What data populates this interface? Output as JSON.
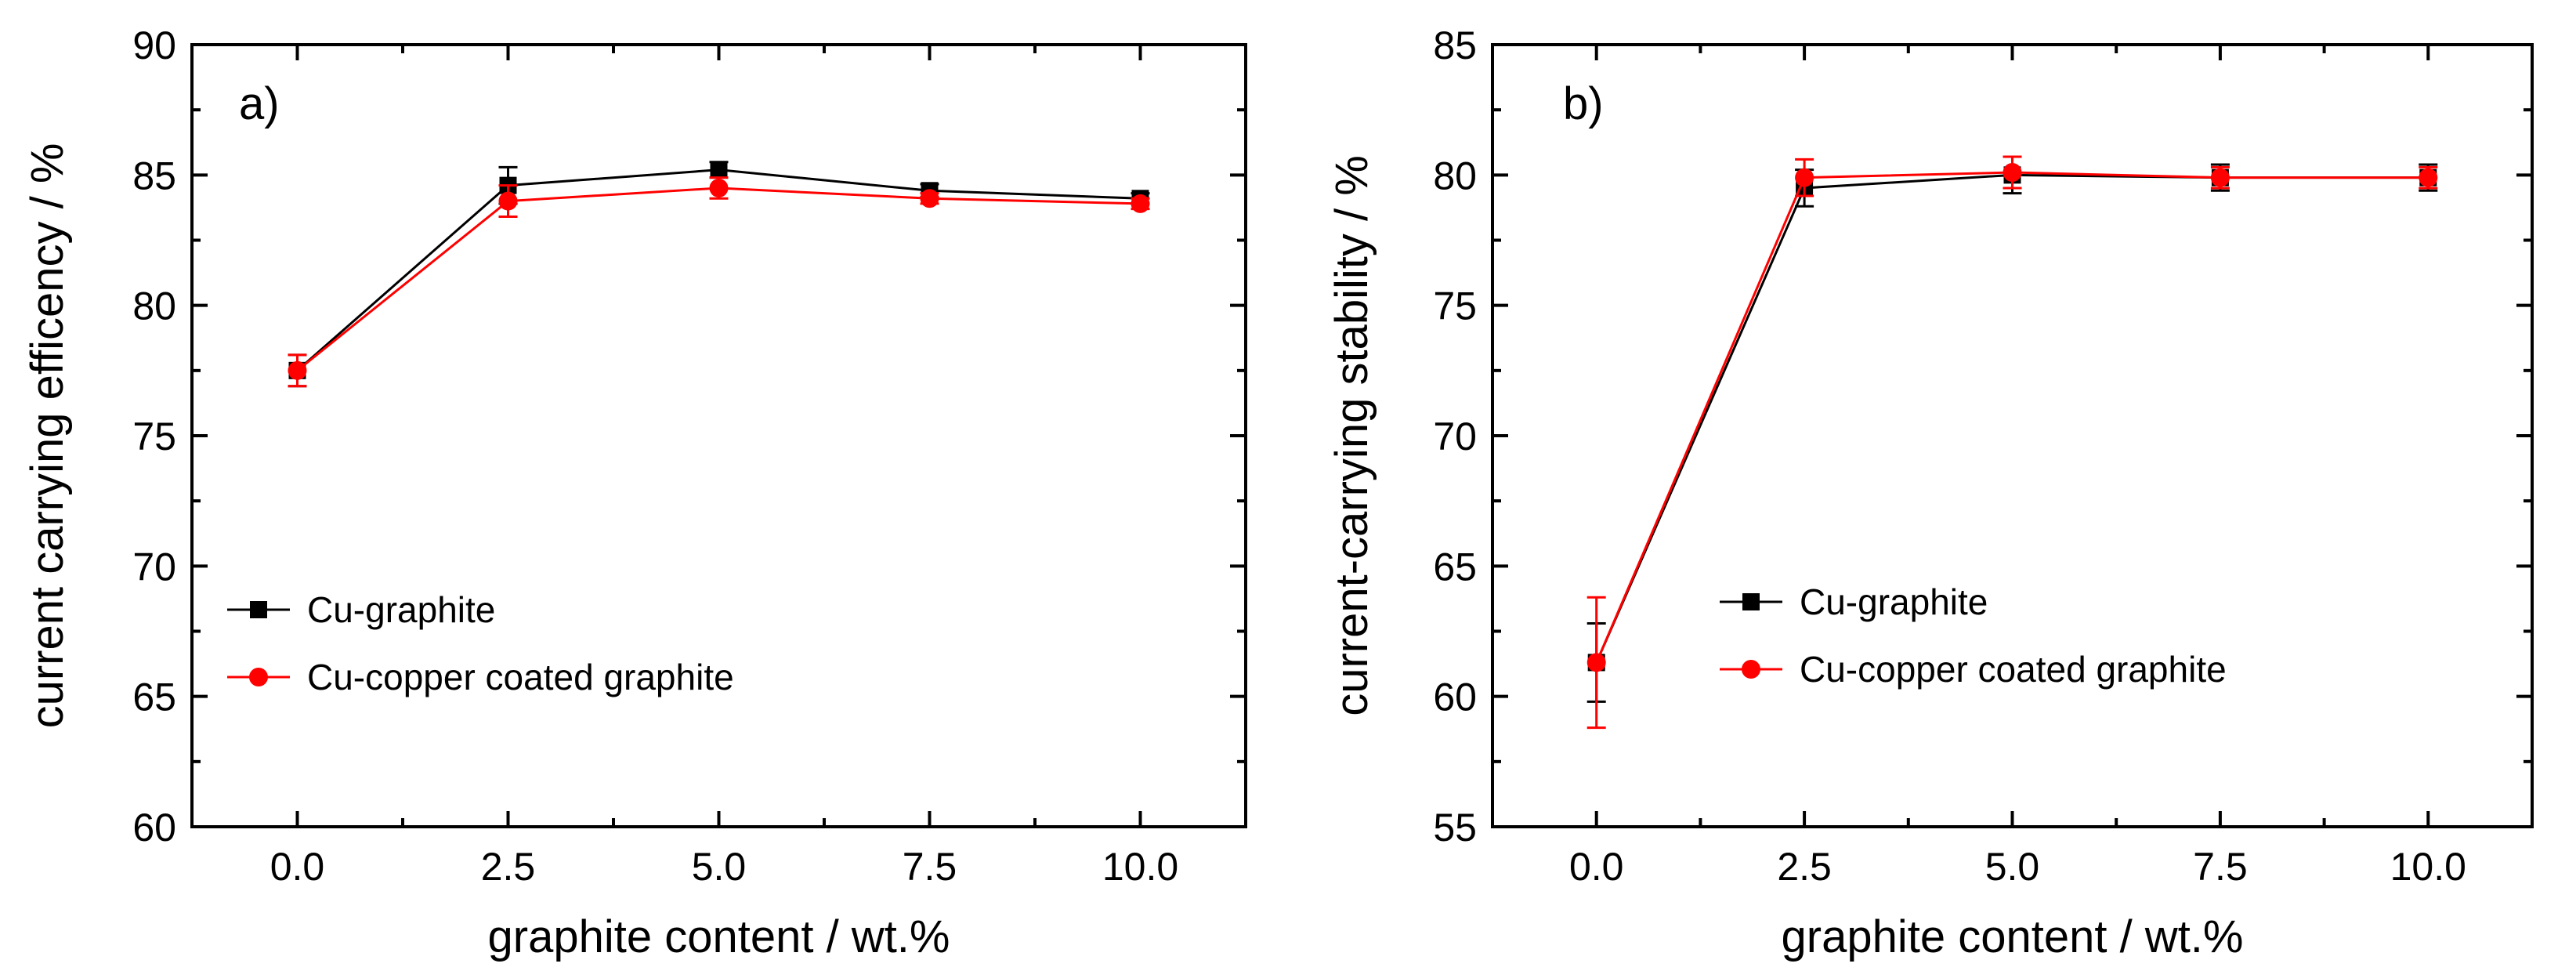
{
  "chart_data": [
    {
      "type": "line",
      "panel_label": "a)",
      "xlabel": "graphite content / wt.%",
      "ylabel": "current carrying efficency / %",
      "x": [
        0.0,
        2.5,
        5.0,
        7.5,
        10.0
      ],
      "xticks": [
        "0.0",
        "2.5",
        "5.0",
        "7.5",
        "10.0"
      ],
      "xlim": [
        -1.25,
        11.25
      ],
      "ylim": [
        60,
        90
      ],
      "yticks": [
        "60",
        "65",
        "70",
        "75",
        "80",
        "85",
        "90"
      ],
      "legend_position": "lower-left",
      "series": [
        {
          "name": "Cu-graphite",
          "color": "#000000",
          "marker": "square",
          "values": [
            77.5,
            84.6,
            85.2,
            84.4,
            84.1
          ],
          "errors": [
            0.6,
            0.7,
            0.3,
            0.25,
            0.2
          ]
        },
        {
          "name": "Cu-copper coated graphite",
          "color": "#ff0000",
          "marker": "circle",
          "values": [
            77.5,
            84.0,
            84.5,
            84.1,
            83.9
          ],
          "errors": [
            0.6,
            0.6,
            0.4,
            0.2,
            0.2
          ]
        }
      ]
    },
    {
      "type": "line",
      "panel_label": "b)",
      "xlabel": "graphite content / wt.%",
      "ylabel": "current-carrying stability / %",
      "x": [
        0.0,
        2.5,
        5.0,
        7.5,
        10.0
      ],
      "xticks": [
        "0.0",
        "2.5",
        "5.0",
        "7.5",
        "10.0"
      ],
      "xlim": [
        -1.25,
        11.25
      ],
      "ylim": [
        55,
        85
      ],
      "yticks": [
        "55",
        "60",
        "65",
        "70",
        "75",
        "80",
        "85"
      ],
      "legend_position": "lower-left",
      "series": [
        {
          "name": "Cu-graphite",
          "color": "#000000",
          "marker": "square",
          "values": [
            61.3,
            79.5,
            80.0,
            79.9,
            79.9
          ],
          "errors": [
            1.5,
            0.7,
            0.7,
            0.5,
            0.5
          ]
        },
        {
          "name": "Cu-copper coated graphite",
          "color": "#ff0000",
          "marker": "circle",
          "values": [
            61.3,
            79.9,
            80.1,
            79.9,
            79.9
          ],
          "errors": [
            2.5,
            0.7,
            0.6,
            0.4,
            0.4
          ]
        }
      ]
    }
  ]
}
